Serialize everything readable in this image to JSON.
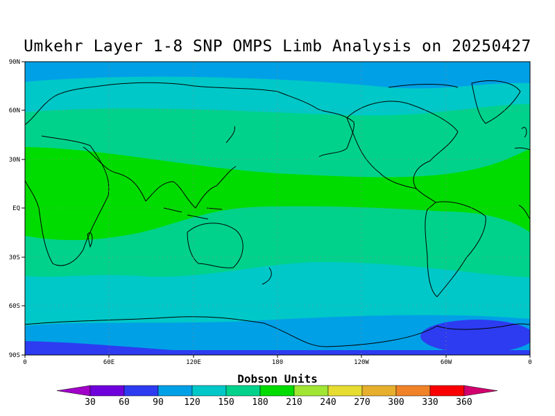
{
  "title": "Umkehr Layer 1-8 SNP OMPS Limb Analysis on 20250427",
  "lat_ticks": [
    "90N",
    "60N",
    "30N",
    "EQ",
    "30S",
    "60S",
    "90S"
  ],
  "lon_ticks": [
    "0",
    "60E",
    "120E",
    "180",
    "120W",
    "60W",
    "0"
  ],
  "colorbar": {
    "title": "Dobson Units",
    "labels": [
      "30",
      "60",
      "90",
      "120",
      "150",
      "180",
      "210",
      "240",
      "270",
      "300",
      "330",
      "360"
    ],
    "colors": [
      "#a000c8",
      "#6e00dc",
      "#2d3cf0",
      "#00a0e6",
      "#00c8c8",
      "#00d28c",
      "#00dc00",
      "#a0e632",
      "#e6dc32",
      "#e6af2d",
      "#f08228",
      "#fa0000",
      "#d2006e"
    ]
  },
  "map_data": {
    "type": "filled-contour",
    "projection": "equirectangular",
    "lon_range": [
      0,
      360
    ],
    "lat_range": [
      -90,
      90
    ],
    "bands": [
      {
        "lat_from": 90,
        "lat_to": 78,
        "dobson": "90-120"
      },
      {
        "lat_from": 78,
        "lat_to": 52,
        "dobson": "120-150"
      },
      {
        "lat_from": 52,
        "lat_to": 30,
        "dobson": "150-180"
      },
      {
        "lat_from": 30,
        "lat_to": -15,
        "dobson": "180-210"
      },
      {
        "lat_from": -15,
        "lat_to": -40,
        "dobson": "150-180"
      },
      {
        "lat_from": -40,
        "lat_to": -68,
        "dobson": "120-150"
      },
      {
        "lat_from": -68,
        "lat_to": -83,
        "dobson": "90-120"
      },
      {
        "lat_from": -83,
        "lat_to": -90,
        "dobson": "60-90"
      }
    ],
    "anomalies": [
      {
        "region": "South Atlantic / Antarctic 60W",
        "dobson": "60-90"
      }
    ]
  }
}
